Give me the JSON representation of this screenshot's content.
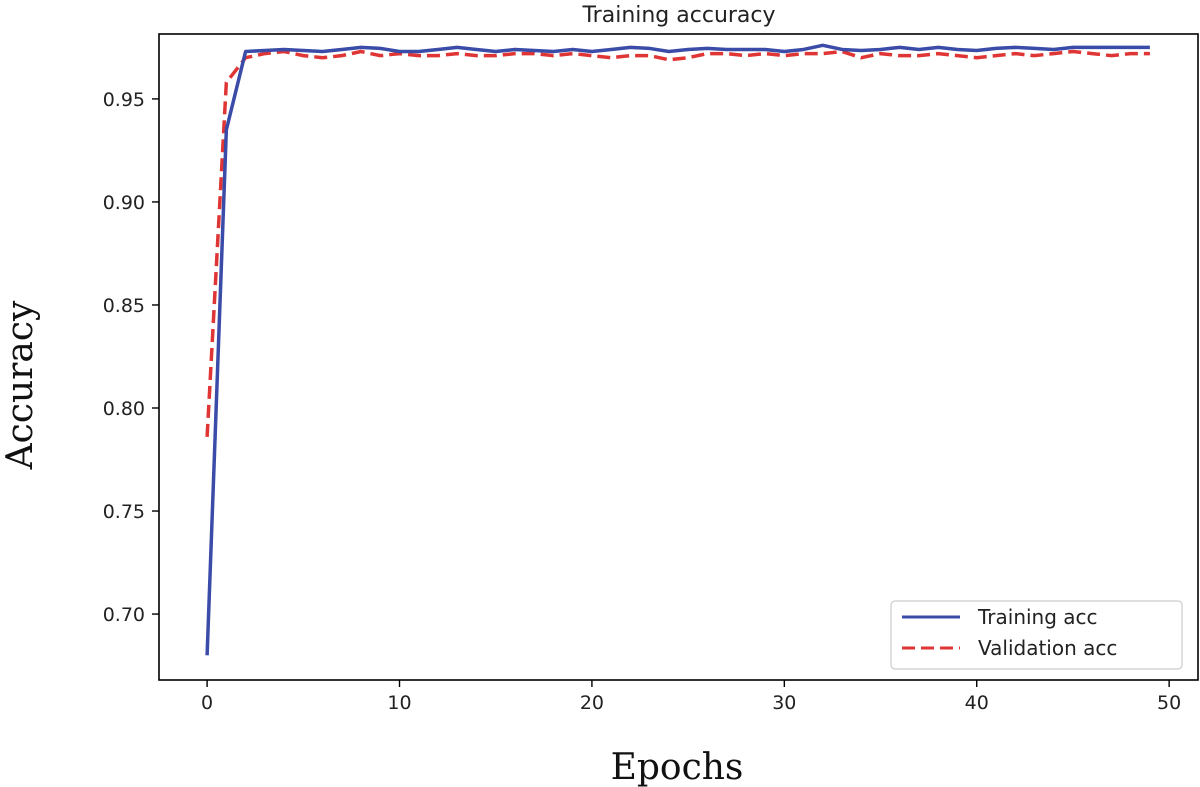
{
  "chart_data": {
    "type": "line",
    "title": "Training  accuracy",
    "xlabel": "Epochs",
    "ylabel": "Accuracy",
    "xlim": [
      -2.5,
      51.5
    ],
    "ylim": [
      0.668,
      0.9815
    ],
    "xticks": [
      0,
      10,
      20,
      30,
      40,
      50
    ],
    "yticks": [
      0.7,
      0.75,
      0.8,
      0.85,
      0.9,
      0.95
    ],
    "ytick_labels": [
      "0.70",
      "0.75",
      "0.80",
      "0.85",
      "0.90",
      "0.95"
    ],
    "grid": false,
    "legend_position": "lower-right",
    "series": [
      {
        "name": "Training acc",
        "color": "#3a4ba8",
        "dash": "solid",
        "x": [
          0,
          1,
          2,
          3,
          4,
          5,
          6,
          7,
          8,
          9,
          10,
          11,
          12,
          13,
          14,
          15,
          16,
          17,
          18,
          19,
          20,
          21,
          22,
          23,
          24,
          25,
          26,
          27,
          28,
          29,
          30,
          31,
          32,
          33,
          34,
          35,
          36,
          37,
          38,
          39,
          40,
          41,
          42,
          43,
          44,
          45,
          46,
          47,
          48,
          49
        ],
        "y": [
          0.68,
          0.935,
          0.973,
          0.9735,
          0.974,
          0.9735,
          0.973,
          0.974,
          0.975,
          0.9745,
          0.973,
          0.973,
          0.974,
          0.975,
          0.974,
          0.973,
          0.974,
          0.9735,
          0.973,
          0.974,
          0.973,
          0.974,
          0.975,
          0.9745,
          0.973,
          0.974,
          0.9745,
          0.974,
          0.974,
          0.974,
          0.973,
          0.974,
          0.976,
          0.974,
          0.9735,
          0.974,
          0.975,
          0.974,
          0.975,
          0.974,
          0.9735,
          0.9745,
          0.975,
          0.9745,
          0.974,
          0.975,
          0.975,
          0.975,
          0.975,
          0.975
        ]
      },
      {
        "name": "Validation acc",
        "color": "#e03535",
        "dash": "dashed",
        "x": [
          0,
          1,
          2,
          3,
          4,
          5,
          6,
          7,
          8,
          9,
          10,
          11,
          12,
          13,
          14,
          15,
          16,
          17,
          18,
          19,
          20,
          21,
          22,
          23,
          24,
          25,
          26,
          27,
          28,
          29,
          30,
          31,
          32,
          33,
          34,
          35,
          36,
          37,
          38,
          39,
          40,
          41,
          42,
          43,
          44,
          45,
          46,
          47,
          48,
          49
        ],
        "y": [
          0.786,
          0.958,
          0.97,
          0.972,
          0.973,
          0.971,
          0.97,
          0.971,
          0.973,
          0.971,
          0.972,
          0.971,
          0.971,
          0.972,
          0.971,
          0.971,
          0.972,
          0.972,
          0.971,
          0.972,
          0.971,
          0.97,
          0.971,
          0.971,
          0.969,
          0.97,
          0.972,
          0.972,
          0.971,
          0.972,
          0.971,
          0.972,
          0.972,
          0.973,
          0.97,
          0.972,
          0.971,
          0.971,
          0.972,
          0.971,
          0.97,
          0.971,
          0.972,
          0.971,
          0.972,
          0.973,
          0.972,
          0.971,
          0.972,
          0.972
        ]
      }
    ]
  }
}
